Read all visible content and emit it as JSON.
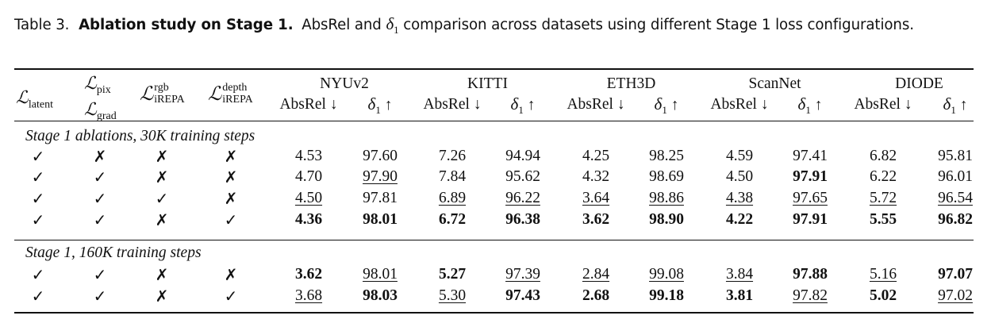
{
  "caption": {
    "label": "Table 3.",
    "title": "Ablation study on Stage 1.",
    "text_before": "AbsRel and",
    "delta_symbol": "δ",
    "delta_sub": "1",
    "text_after": "comparison across datasets using different Stage 1 loss configurations."
  },
  "header": {
    "loss_columns": [
      {
        "id": "latent",
        "sym": "ℒ",
        "sub": "latent"
      },
      {
        "id": "pix-grad",
        "sym": "ℒ",
        "sub": "pix",
        "sym2": "ℒ",
        "sub2": "grad"
      },
      {
        "id": "rgb",
        "sym": "ℒ",
        "sup": "rgb",
        "sub": "iREPA"
      },
      {
        "id": "depth",
        "sym": "ℒ",
        "sup": "depth",
        "sub": "iREPA"
      }
    ],
    "datasets": [
      "NYUv2",
      "KITTI",
      "ETH3D",
      "ScanNet",
      "DIODE"
    ],
    "metric_absrel": "AbsRel",
    "down_arrow": "↓",
    "up_arrow": "↑",
    "delta_symbol": "δ",
    "delta_sub": "1"
  },
  "glyphs": {
    "check": "✓",
    "cross": "✗"
  },
  "sections": [
    {
      "title": "Stage 1 ablations, 30K training steps",
      "rows": [
        {
          "marks": [
            "check",
            "cross",
            "cross",
            "cross"
          ],
          "cells": [
            {
              "v": "4.53"
            },
            {
              "v": "97.60"
            },
            {
              "v": "7.26"
            },
            {
              "v": "94.94"
            },
            {
              "v": "4.25"
            },
            {
              "v": "98.25"
            },
            {
              "v": "4.59"
            },
            {
              "v": "97.41"
            },
            {
              "v": "6.82"
            },
            {
              "v": "95.81"
            }
          ]
        },
        {
          "marks": [
            "check",
            "check",
            "cross",
            "cross"
          ],
          "cells": [
            {
              "v": "4.70"
            },
            {
              "v": "97.90",
              "s": "u"
            },
            {
              "v": "7.84"
            },
            {
              "v": "95.62"
            },
            {
              "v": "4.32"
            },
            {
              "v": "98.69"
            },
            {
              "v": "4.50"
            },
            {
              "v": "97.91",
              "s": "b"
            },
            {
              "v": "6.22"
            },
            {
              "v": "96.01"
            }
          ]
        },
        {
          "marks": [
            "check",
            "check",
            "check",
            "cross"
          ],
          "cells": [
            {
              "v": "4.50",
              "s": "u"
            },
            {
              "v": "97.81"
            },
            {
              "v": "6.89",
              "s": "u"
            },
            {
              "v": "96.22",
              "s": "u"
            },
            {
              "v": "3.64",
              "s": "u"
            },
            {
              "v": "98.86",
              "s": "u"
            },
            {
              "v": "4.38",
              "s": "u"
            },
            {
              "v": "97.65",
              "s": "u"
            },
            {
              "v": "5.72",
              "s": "u"
            },
            {
              "v": "96.54",
              "s": "u"
            }
          ]
        },
        {
          "marks": [
            "check",
            "check",
            "cross",
            "check"
          ],
          "cells": [
            {
              "v": "4.36",
              "s": "b"
            },
            {
              "v": "98.01",
              "s": "b"
            },
            {
              "v": "6.72",
              "s": "b"
            },
            {
              "v": "96.38",
              "s": "b"
            },
            {
              "v": "3.62",
              "s": "b"
            },
            {
              "v": "98.90",
              "s": "b"
            },
            {
              "v": "4.22",
              "s": "b"
            },
            {
              "v": "97.91",
              "s": "b"
            },
            {
              "v": "5.55",
              "s": "b"
            },
            {
              "v": "96.82",
              "s": "b"
            }
          ]
        }
      ]
    },
    {
      "title": "Stage 1, 160K training steps",
      "rows": [
        {
          "marks": [
            "check",
            "check",
            "cross",
            "cross"
          ],
          "cells": [
            {
              "v": "3.62",
              "s": "b"
            },
            {
              "v": "98.01",
              "s": "u"
            },
            {
              "v": "5.27",
              "s": "b"
            },
            {
              "v": "97.39",
              "s": "u"
            },
            {
              "v": "2.84",
              "s": "u"
            },
            {
              "v": "99.08",
              "s": "u"
            },
            {
              "v": "3.84",
              "s": "u"
            },
            {
              "v": "97.88",
              "s": "b"
            },
            {
              "v": "5.16",
              "s": "u"
            },
            {
              "v": "97.07",
              "s": "b"
            }
          ]
        },
        {
          "marks": [
            "check",
            "check",
            "cross",
            "check"
          ],
          "cells": [
            {
              "v": "3.68",
              "s": "u"
            },
            {
              "v": "98.03",
              "s": "b"
            },
            {
              "v": "5.30",
              "s": "u"
            },
            {
              "v": "97.43",
              "s": "b"
            },
            {
              "v": "2.68",
              "s": "b"
            },
            {
              "v": "99.18",
              "s": "b"
            },
            {
              "v": "3.81",
              "s": "b"
            },
            {
              "v": "97.82",
              "s": "u"
            },
            {
              "v": "5.02",
              "s": "b"
            },
            {
              "v": "97.02",
              "s": "u"
            }
          ]
        }
      ]
    }
  ]
}
